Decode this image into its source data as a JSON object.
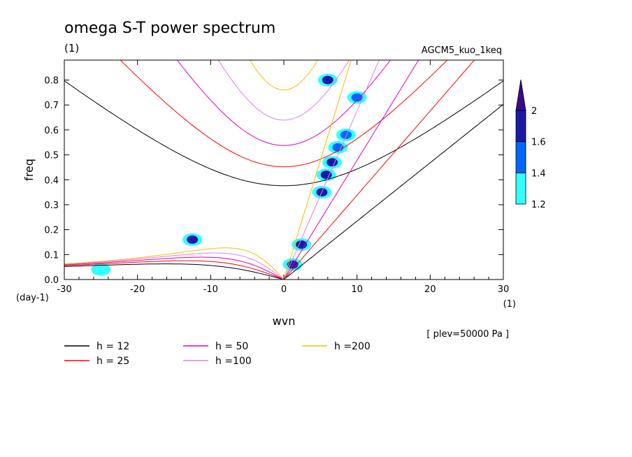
{
  "chart_data": {
    "type": "heatmap",
    "title": "omega S-T power spectrum",
    "subtitle": "(1)",
    "run_label": "AGCM5_kuo_1keq",
    "xlabel": "wvn",
    "ylabel": "freq",
    "x_unit": "(1)",
    "y_unit": "(day-1)",
    "level_note": "[ plev=50000 Pa ]",
    "xlim": [
      -30,
      30
    ],
    "ylim": [
      0,
      0.88
    ],
    "xticks": [
      -30,
      -20,
      -10,
      0,
      10,
      20,
      30
    ],
    "yticks": [
      0,
      0.1,
      0.2,
      0.3,
      0.4,
      0.5,
      0.6,
      0.7,
      0.8
    ],
    "colorbar": {
      "levels": [
        1.2,
        1.4,
        1.6,
        2
      ],
      "colors": [
        "#33ffff",
        "#0066ff",
        "#1a1aa8",
        "#3a0a8c"
      ],
      "extend": "max"
    },
    "dispersion_curves": [
      {
        "name": "h = 12",
        "h": 12,
        "color": "#000000"
      },
      {
        "name": "h = 25",
        "h": 25,
        "color": "#ff0000"
      },
      {
        "name": "h = 50",
        "h": 50,
        "color": "#e000c0"
      },
      {
        "name": "h =100",
        "h": 100,
        "color": "#e080e0"
      },
      {
        "name": "h =200",
        "h": 200,
        "color": "#f0c000"
      }
    ],
    "power_patches": [
      {
        "x": 5.2,
        "y": 0.35,
        "level": 3
      },
      {
        "x": 5.8,
        "y": 0.42,
        "level": 3
      },
      {
        "x": 6.6,
        "y": 0.47,
        "level": 3
      },
      {
        "x": 7.4,
        "y": 0.53,
        "level": 2
      },
      {
        "x": 8.5,
        "y": 0.58,
        "level": 2
      },
      {
        "x": 6.0,
        "y": 0.8,
        "level": 3
      },
      {
        "x": 2.4,
        "y": 0.14,
        "level": 3
      },
      {
        "x": 1.2,
        "y": 0.06,
        "level": 3
      },
      {
        "x": -12.5,
        "y": 0.16,
        "level": 3
      },
      {
        "x": 10.0,
        "y": 0.73,
        "level": 2
      },
      {
        "x": -25.0,
        "y": 0.04,
        "level": 1
      }
    ]
  }
}
